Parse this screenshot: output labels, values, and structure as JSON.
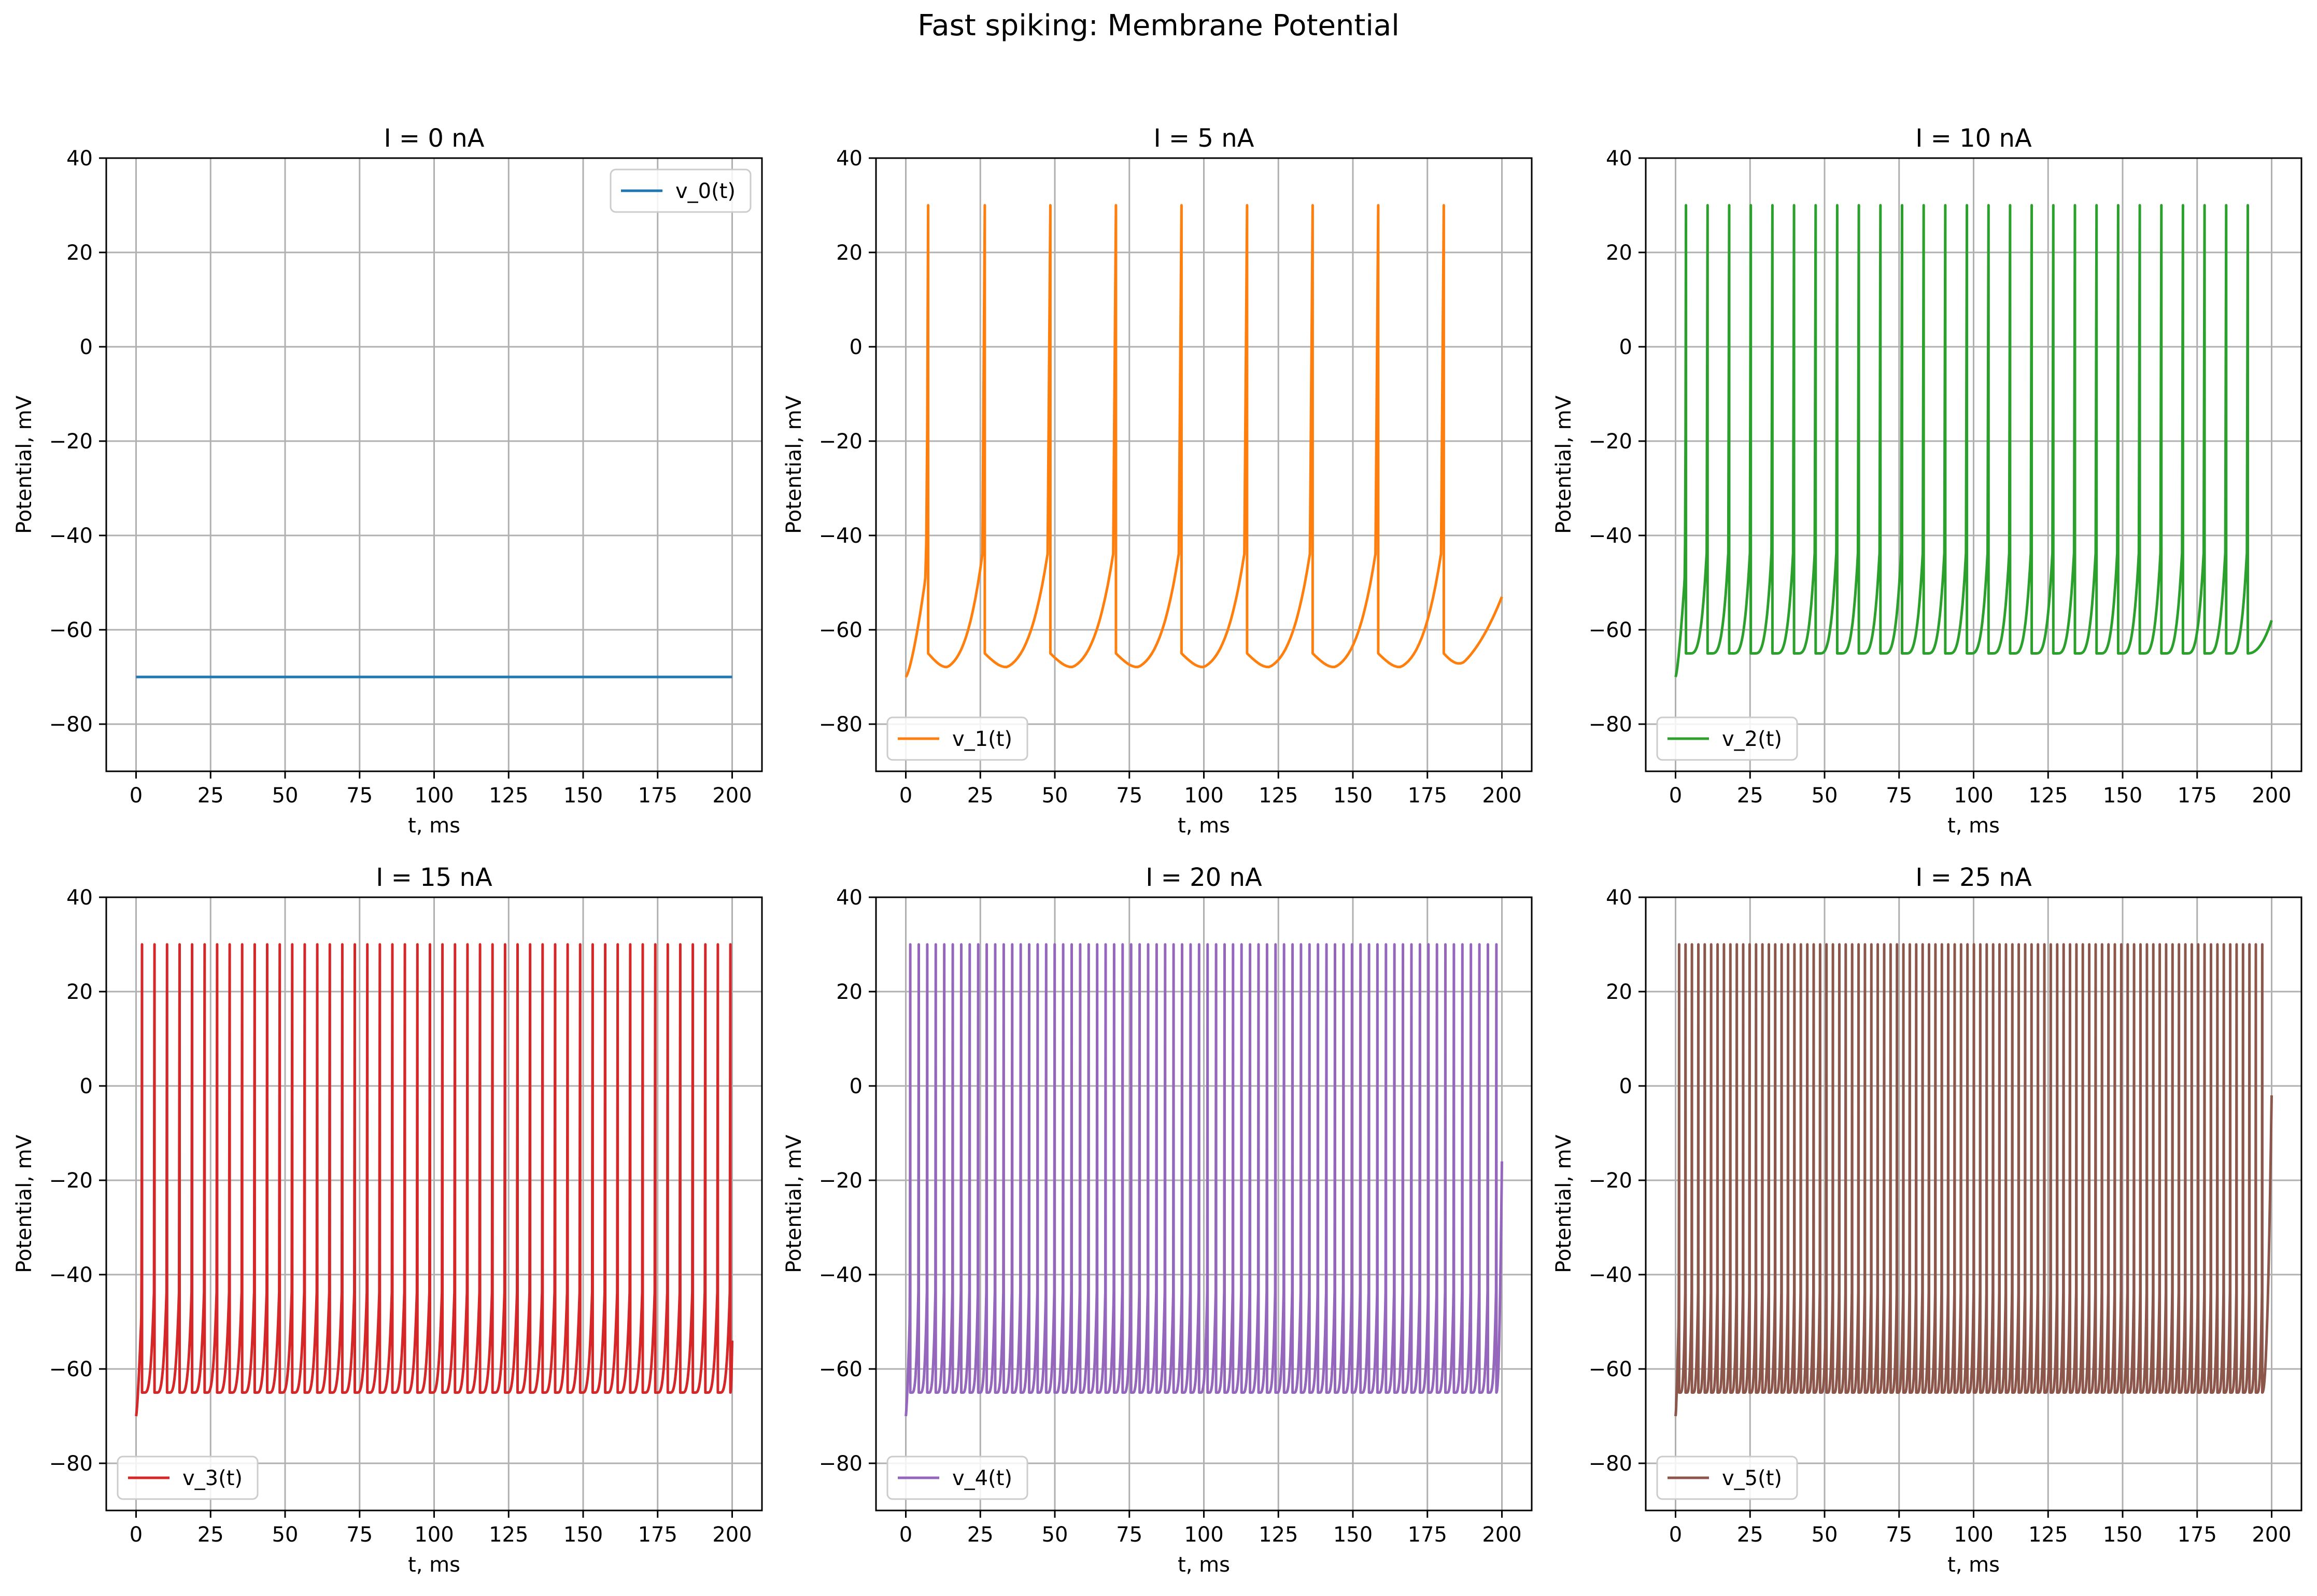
{
  "figure": {
    "suptitle": "Fast spiking: Membrane Potential"
  },
  "style": {
    "grid_color": "#b0b0b0",
    "axes_color": "#000000",
    "background": "#ffffff"
  },
  "chart_data": [
    {
      "type": "line",
      "title": "I = 0 nA",
      "xlabel": "t, ms",
      "ylabel": "Potential, mV",
      "xlim": [
        -10,
        210
      ],
      "ylim": [
        -90,
        40
      ],
      "xticks": [
        0,
        25,
        50,
        75,
        100,
        125,
        150,
        175,
        200
      ],
      "yticks": [
        -80,
        -60,
        -40,
        -20,
        0,
        20,
        40
      ],
      "grid": true,
      "legend_loc": "upper-right",
      "series": [
        {
          "name": "v_0(t)",
          "color": "#1f77b4",
          "spikes": [],
          "v_start": -70,
          "v_rest": -70,
          "v_reset": -70,
          "v_peak": 30
        }
      ]
    },
    {
      "type": "line",
      "title": "I = 5 nA",
      "xlabel": "t, ms",
      "ylabel": "Potential, mV",
      "xlim": [
        -10,
        210
      ],
      "ylim": [
        -90,
        40
      ],
      "xticks": [
        0,
        25,
        50,
        75,
        100,
        125,
        150,
        175,
        200
      ],
      "yticks": [
        -80,
        -60,
        -40,
        -20,
        0,
        20,
        40
      ],
      "grid": true,
      "legend_loc": "lower-left",
      "series": [
        {
          "name": "v_1(t)",
          "color": "#ff7f0e",
          "spikes": [
            7.5,
            26.5,
            48.5,
            70.5,
            92.5,
            114.5,
            136.5,
            158.5,
            180.5
          ],
          "v_start": -70,
          "v_reset": -65,
          "v_min": -68,
          "v_peak": 30,
          "v_end": -53
        }
      ]
    },
    {
      "type": "line",
      "title": "I = 10 nA",
      "xlabel": "t, ms",
      "ylabel": "Potential, mV",
      "xlim": [
        -10,
        210
      ],
      "ylim": [
        -90,
        40
      ],
      "xticks": [
        0,
        25,
        50,
        75,
        100,
        125,
        150,
        175,
        200
      ],
      "yticks": [
        -80,
        -60,
        -40,
        -20,
        0,
        20,
        40
      ],
      "grid": true,
      "legend_loc": "lower-left",
      "series": [
        {
          "name": "v_2(t)",
          "color": "#2ca02c",
          "spike_start": 3.5,
          "spike_period": 7.25,
          "spike_count": 27,
          "v_start": -70,
          "v_reset": -65,
          "v_peak": 30,
          "v_end": -58
        }
      ]
    },
    {
      "type": "line",
      "title": "I = 15 nA",
      "xlabel": "t, ms",
      "ylabel": "Potential, mV",
      "xlim": [
        -10,
        210
      ],
      "ylim": [
        -90,
        40
      ],
      "xticks": [
        0,
        25,
        50,
        75,
        100,
        125,
        150,
        175,
        200
      ],
      "yticks": [
        -80,
        -60,
        -40,
        -20,
        0,
        20,
        40
      ],
      "grid": true,
      "legend_loc": "lower-left",
      "series": [
        {
          "name": "v_3(t)",
          "color": "#d62728",
          "spike_start": 2,
          "spike_period": 4.2,
          "spike_count": 48,
          "v_start": -70,
          "v_reset": -65,
          "v_peak": 30,
          "v_end": -54
        }
      ]
    },
    {
      "type": "line",
      "title": "I = 20 nA",
      "xlabel": "t, ms",
      "ylabel": "Potential, mV",
      "xlim": [
        -10,
        210
      ],
      "ylim": [
        -90,
        40
      ],
      "xticks": [
        0,
        25,
        50,
        75,
        100,
        125,
        150,
        175,
        200
      ],
      "yticks": [
        -80,
        -60,
        -40,
        -20,
        0,
        20,
        40
      ],
      "grid": true,
      "legend_loc": "lower-left",
      "series": [
        {
          "name": "v_4(t)",
          "color": "#9467bd",
          "spike_start": 1.5,
          "spike_period": 2.85,
          "spike_count": 70,
          "v_start": -70,
          "v_reset": -65,
          "v_peak": 30,
          "v_end": -16
        }
      ]
    },
    {
      "type": "line",
      "title": "I = 25 nA",
      "xlabel": "t, ms",
      "ylabel": "Potential, mV",
      "xlim": [
        -10,
        210
      ],
      "ylim": [
        -90,
        40
      ],
      "xticks": [
        0,
        25,
        50,
        75,
        100,
        125,
        150,
        175,
        200
      ],
      "yticks": [
        -80,
        -60,
        -40,
        -20,
        0,
        20,
        40
      ],
      "grid": true,
      "legend_loc": "lower-left",
      "series": [
        {
          "name": "v_5(t)",
          "color": "#8c564b",
          "spike_start": 1.2,
          "spike_period": 2.15,
          "spike_count": 92,
          "v_start": -70,
          "v_reset": -65,
          "v_peak": 30,
          "v_end": -2
        }
      ]
    }
  ]
}
